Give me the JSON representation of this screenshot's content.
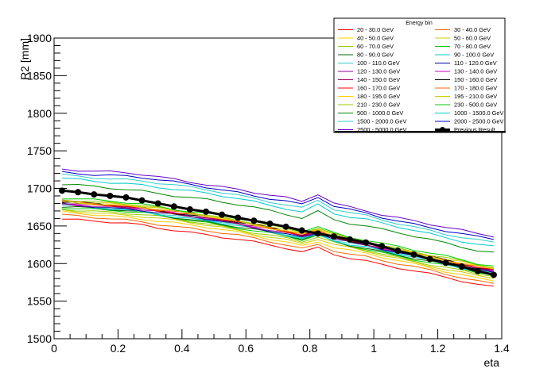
{
  "chart_data": {
    "type": "line",
    "title": "",
    "xlabel": "eta",
    "ylabel": "R2 [mm]",
    "xlim": [
      0,
      1.4
    ],
    "ylim": [
      1500,
      1900
    ],
    "x_ticks": [
      "0",
      "0.2",
      "0.4",
      "0.6",
      "0.8",
      "1",
      "1.2",
      "1.4"
    ],
    "y_ticks": [
      "1500",
      "1550",
      "1600",
      "1650",
      "1700",
      "1750",
      "1800",
      "1850",
      "1900"
    ],
    "legend_title": "Energy bin",
    "legend_position": "top-right",
    "x": [
      0.025,
      0.075,
      0.125,
      0.175,
      0.225,
      0.275,
      0.325,
      0.375,
      0.425,
      0.475,
      0.525,
      0.575,
      0.625,
      0.675,
      0.725,
      0.775,
      0.825,
      0.875,
      0.925,
      0.975,
      1.025,
      1.075,
      1.125,
      1.175,
      1.225,
      1.275,
      1.325,
      1.375
    ],
    "profile": [
      0,
      -1.5,
      -3,
      -4.5,
      -6,
      -8,
      -11,
      -14,
      -17,
      -20,
      -23.5,
      -27,
      -31,
      -35,
      -39,
      -44,
      -38,
      -46,
      -51,
      -55,
      -60,
      -64.5,
      -69,
      -73.5,
      -78,
      -82.5,
      -87,
      -90
    ],
    "series": [
      {
        "name": "20 - 30.0 GeV",
        "color": "#ff0000",
        "offset": 1659,
        "bump": 6
      },
      {
        "name": "30 - 40.0 GeV",
        "color": "#ff6600",
        "offset": 1664,
        "bump": 6
      },
      {
        "name": "40 - 50.0 GeV",
        "color": "#ffcc00",
        "offset": 1668,
        "bump": 6
      },
      {
        "name": "50 - 60.0 GeV",
        "color": "#cccc00",
        "offset": 1671,
        "bump": 6
      },
      {
        "name": "60 - 70.0 GeV",
        "color": "#99cc00",
        "offset": 1673,
        "bump": 6
      },
      {
        "name": "70 - 80.0 GeV",
        "color": "#00cc00",
        "offset": 1675,
        "bump": 6
      },
      {
        "name": "80 - 90.0 GeV",
        "color": "#006600",
        "offset": 1676,
        "bump": 6
      },
      {
        "name": "90 - 100.0 GeV",
        "color": "#00cccc",
        "offset": 1677,
        "bump": 6
      },
      {
        "name": "100 - 110.0 GeV",
        "color": "#33cccc",
        "offset": 1678,
        "bump": 6
      },
      {
        "name": "110 - 120.0 GeV",
        "color": "#000099",
        "offset": 1679,
        "bump": 6
      },
      {
        "name": "120 - 130.0 GeV",
        "color": "#990099",
        "offset": 1680,
        "bump": 6
      },
      {
        "name": "130 - 140.0 GeV",
        "color": "#cc00cc",
        "offset": 1681,
        "bump": 6
      },
      {
        "name": "140 - 150.0 GeV",
        "color": "#990066",
        "offset": 1681,
        "bump": 6
      },
      {
        "name": "150 - 160.0 GeV",
        "color": "#000000",
        "offset": 1682,
        "bump": 6
      },
      {
        "name": "160 - 170.0 GeV",
        "color": "#ff0000",
        "offset": 1682,
        "bump": 6
      },
      {
        "name": "170 - 180.0 GeV",
        "color": "#ff6600",
        "offset": 1683,
        "bump": 6
      },
      {
        "name": "180 - 195.0 GeV",
        "color": "#ffcc00",
        "offset": 1683,
        "bump": 6
      },
      {
        "name": "195 - 210.0 GeV",
        "color": "#cccc00",
        "offset": 1684,
        "bump": 6
      },
      {
        "name": "210 - 230.0 GeV",
        "color": "#99cc00",
        "offset": 1685,
        "bump": 6
      },
      {
        "name": "230 - 500.0 GeV",
        "color": "#00cc00",
        "offset": 1687,
        "bump": 6
      },
      {
        "name": "500 - 1000.0 GeV",
        "color": "#008800",
        "offset": 1705,
        "bump": 9
      },
      {
        "name": "1000 - 1500.0 GeV",
        "color": "#00cccc",
        "offset": 1713,
        "bump": 10
      },
      {
        "name": "1500 - 2000.0 GeV",
        "color": "#33cccc",
        "offset": 1718,
        "bump": 10
      },
      {
        "name": "2000 - 2500.0 GeV",
        "color": "#0000cc",
        "offset": 1722,
        "bump": 10
      },
      {
        "name": "2500 - 5000.0 GeV",
        "color": "#6600cc",
        "offset": 1726,
        "bump": 10
      }
    ],
    "previous_result": {
      "name": "Previous Result",
      "color": "#000000",
      "y": [
        1697,
        1695,
        1692,
        1690,
        1688,
        1684,
        1680,
        1676,
        1672,
        1669,
        1665,
        1661,
        1657,
        1653,
        1649,
        1644,
        1640,
        1636,
        1632,
        1628,
        1623,
        1617,
        1612,
        1606,
        1601,
        1596,
        1590,
        1585
      ]
    }
  }
}
